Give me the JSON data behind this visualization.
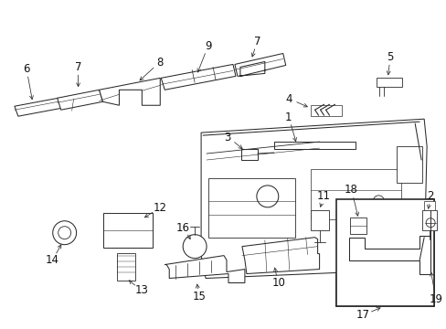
{
  "background_color": "#ffffff",
  "line_color": "#2a2a2a",
  "label_color": "#111111",
  "figsize": [
    4.89,
    3.6
  ],
  "dpi": 100,
  "lw": 0.75
}
